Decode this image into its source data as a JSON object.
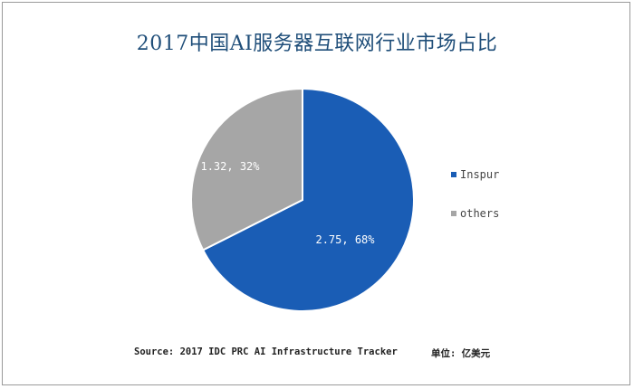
{
  "chart_data": {
    "type": "pie",
    "title": "2017中国AI服务器互联网行业市场占比",
    "slices": [
      {
        "name": "Inspur",
        "value": 2.75,
        "percent": 68,
        "label": "2.75, 68%",
        "color": "#1a5db5"
      },
      {
        "name": "others",
        "value": 1.32,
        "percent": 32,
        "label": "1.32, 32%",
        "color": "#a6a6a6"
      }
    ],
    "legend_position": "right",
    "source": "Source: 2017 IDC PRC AI Infrastructure Tracker",
    "unit": "单位: 亿美元"
  }
}
